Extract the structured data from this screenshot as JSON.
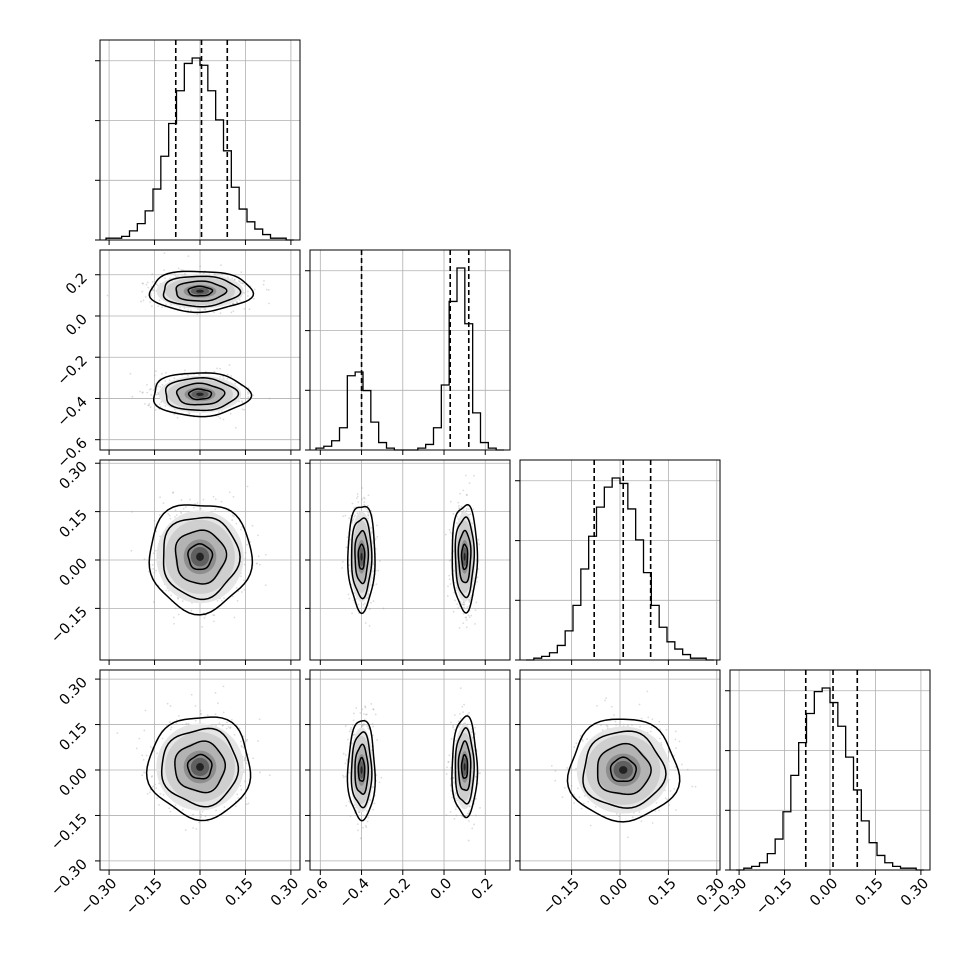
{
  "chart_data": {
    "type": "corner",
    "title": "",
    "n_params": 4,
    "axis_labels": [
      "",
      "",
      "",
      ""
    ],
    "ranges": [
      [
        -0.33,
        0.33
      ],
      [
        -0.65,
        0.32
      ],
      [
        -0.31,
        0.31
      ],
      [
        -0.33,
        0.33
      ]
    ],
    "x_ticks": [
      [
        -0.3,
        -0.15,
        0.0,
        0.15,
        0.3
      ],
      [
        -0.6,
        -0.4,
        -0.2,
        0.0,
        0.2
      ],
      [
        -0.15,
        0.0,
        0.15,
        0.3
      ],
      [
        -0.3,
        -0.15,
        0.0,
        0.15,
        0.3
      ]
    ],
    "x_tick_labels": [
      [
        "−0.30",
        "−0.15",
        "0.00",
        "0.15",
        "0.30"
      ],
      [
        "−0.6",
        "−0.4",
        "−0.2",
        "0.0",
        "0.2"
      ],
      [
        "−0.15",
        "0.00",
        "0.15",
        "0.30"
      ],
      [
        "−0.30",
        "−0.15",
        "0.00",
        "0.15",
        "0.30"
      ]
    ],
    "y_ticks": {
      "1": [
        -0.6,
        -0.4,
        -0.2,
        0.0,
        0.2
      ],
      "2": [
        -0.15,
        0.0,
        0.15,
        0.3
      ],
      "3": [
        -0.3,
        -0.15,
        0.0,
        0.15,
        0.3
      ]
    },
    "y_tick_labels": {
      "1": [
        "−0.6",
        "−0.4",
        "−0.2",
        "0.0",
        "0.2"
      ],
      "2": [
        "−0.15",
        "0.00",
        "0.15",
        "0.30"
      ],
      "3": [
        "−0.30",
        "−0.15",
        "0.00",
        "0.15",
        "0.30"
      ]
    },
    "histograms": [
      {
        "quantiles": [
          -0.08,
          0.005,
          0.09
        ],
        "counts": [
          1,
          1,
          2,
          5,
          9,
          16,
          28,
          46,
          64,
          82,
          97,
          100,
          96,
          82,
          66,
          49,
          29,
          17,
          10,
          6,
          3,
          1,
          1,
          0
        ]
      },
      {
        "quantiles": [
          -0.4,
          0.03,
          0.12
        ],
        "counts": [
          1,
          2,
          5,
          12,
          40,
          42,
          32,
          15,
          4,
          1,
          0,
          0,
          0,
          1,
          3,
          12,
          35,
          80,
          98,
          68,
          20,
          4,
          1,
          0
        ]
      },
      {
        "quantiles": [
          -0.08,
          0.01,
          0.095
        ],
        "counts": [
          0,
          1,
          2,
          4,
          8,
          16,
          30,
          50,
          68,
          84,
          95,
          100,
          97,
          83,
          66,
          48,
          30,
          18,
          10,
          6,
          3,
          1,
          1,
          0
        ]
      },
      {
        "quantiles": [
          -0.08,
          0.01,
          0.09
        ],
        "counts": [
          0,
          1,
          2,
          4,
          9,
          17,
          32,
          52,
          70,
          86,
          98,
          100,
          92,
          79,
          62,
          44,
          27,
          15,
          8,
          4,
          2,
          1,
          1,
          0
        ]
      }
    ],
    "pairs": [
      {
        "row": 1,
        "col": 0,
        "clusters": [
          {
            "cx": 0.0,
            "cy": 0.12,
            "sx": 0.072,
            "sy": 0.042
          },
          {
            "cx": 0.0,
            "cy": -0.38,
            "sx": 0.068,
            "sy": 0.045
          }
        ]
      },
      {
        "row": 2,
        "col": 0,
        "clusters": [
          {
            "cx": 0.0,
            "cy": 0.01,
            "sx": 0.072,
            "sy": 0.072
          }
        ]
      },
      {
        "row": 2,
        "col": 1,
        "clusters": [
          {
            "cx": -0.4,
            "cy": 0.01,
            "sx": 0.028,
            "sy": 0.07
          },
          {
            "cx": 0.1,
            "cy": 0.01,
            "sx": 0.026,
            "sy": 0.07
          }
        ]
      },
      {
        "row": 3,
        "col": 0,
        "clusters": [
          {
            "cx": 0.0,
            "cy": 0.01,
            "sx": 0.072,
            "sy": 0.072
          }
        ]
      },
      {
        "row": 3,
        "col": 1,
        "clusters": [
          {
            "cx": -0.4,
            "cy": 0.0,
            "sx": 0.028,
            "sy": 0.07
          },
          {
            "cx": 0.1,
            "cy": 0.01,
            "sx": 0.026,
            "sy": 0.07
          }
        ]
      },
      {
        "row": 3,
        "col": 2,
        "clusters": [
          {
            "cx": 0.01,
            "cy": 0.0,
            "sx": 0.072,
            "sy": 0.072
          }
        ]
      }
    ],
    "grid": true,
    "legend": "none"
  }
}
